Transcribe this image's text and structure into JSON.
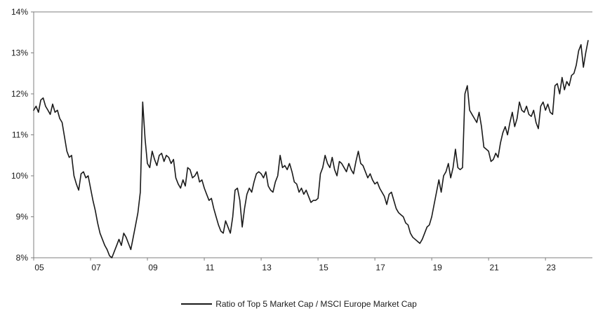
{
  "chart_data": {
    "type": "line",
    "title": "",
    "legend_label": "Ratio of Top 5 Market Cap / MSCI Europe Market Cap",
    "x_start": "2005-01",
    "frequency": "monthly",
    "xlabel": "",
    "ylabel": "",
    "ylim": [
      8,
      14
    ],
    "ytick_labels": [
      "8%",
      "9%",
      "10%",
      "11%",
      "12%",
      "13%",
      "14%"
    ],
    "xtick_years": [
      2005,
      2007,
      2009,
      2011,
      2013,
      2015,
      2017,
      2019,
      2021,
      2023
    ],
    "xtick_labels": [
      "05",
      "07",
      "09",
      "11",
      "13",
      "15",
      "17",
      "19",
      "21",
      "23"
    ],
    "grid": false,
    "legend_position": "bottom-center",
    "line_color": "#1a1a1a",
    "axis_color": "#7f7f7f",
    "values": [
      11.6,
      11.7,
      11.55,
      11.85,
      11.9,
      11.7,
      11.6,
      11.5,
      11.75,
      11.55,
      11.6,
      11.4,
      11.3,
      10.95,
      10.6,
      10.45,
      10.5,
      10.0,
      9.8,
      9.65,
      10.05,
      10.1,
      9.95,
      10.0,
      9.7,
      9.4,
      9.15,
      8.85,
      8.6,
      8.45,
      8.3,
      8.2,
      8.05,
      8.0,
      8.15,
      8.3,
      8.45,
      8.3,
      8.6,
      8.5,
      8.35,
      8.2,
      8.5,
      8.8,
      9.1,
      9.6,
      11.8,
      10.9,
      10.3,
      10.2,
      10.6,
      10.4,
      10.25,
      10.5,
      10.55,
      10.35,
      10.5,
      10.45,
      10.3,
      10.4,
      9.95,
      9.8,
      9.7,
      9.9,
      9.75,
      10.2,
      10.15,
      9.95,
      10.0,
      10.1,
      9.85,
      9.9,
      9.7,
      9.55,
      9.4,
      9.45,
      9.2,
      9.0,
      8.8,
      8.65,
      8.6,
      8.9,
      8.75,
      8.6,
      9.0,
      9.65,
      9.7,
      9.4,
      8.75,
      9.2,
      9.55,
      9.7,
      9.6,
      9.85,
      10.05,
      10.1,
      10.05,
      9.95,
      10.1,
      9.75,
      9.65,
      9.6,
      9.85,
      10.0,
      10.5,
      10.2,
      10.25,
      10.15,
      10.3,
      10.1,
      9.85,
      9.8,
      9.6,
      9.7,
      9.55,
      9.65,
      9.5,
      9.35,
      9.4,
      9.4,
      9.45,
      10.05,
      10.2,
      10.5,
      10.3,
      10.2,
      10.45,
      10.15,
      10.0,
      10.35,
      10.3,
      10.2,
      10.1,
      10.3,
      10.15,
      10.05,
      10.35,
      10.6,
      10.3,
      10.25,
      10.1,
      9.95,
      10.05,
      9.9,
      9.8,
      9.85,
      9.7,
      9.6,
      9.5,
      9.3,
      9.55,
      9.6,
      9.4,
      9.2,
      9.1,
      9.05,
      9.0,
      8.85,
      8.8,
      8.6,
      8.5,
      8.45,
      8.4,
      8.35,
      8.45,
      8.6,
      8.75,
      8.8,
      9.0,
      9.3,
      9.6,
      9.9,
      9.6,
      10.0,
      10.1,
      10.3,
      9.95,
      10.2,
      10.65,
      10.2,
      10.15,
      10.2,
      12.0,
      12.2,
      11.6,
      11.5,
      11.4,
      11.3,
      11.55,
      11.2,
      10.7,
      10.65,
      10.6,
      10.35,
      10.4,
      10.55,
      10.45,
      10.8,
      11.05,
      11.2,
      11.0,
      11.3,
      11.55,
      11.2,
      11.4,
      11.8,
      11.6,
      11.55,
      11.7,
      11.5,
      11.45,
      11.6,
      11.3,
      11.15,
      11.7,
      11.8,
      11.6,
      11.75,
      11.55,
      11.5,
      12.2,
      12.25,
      12.0,
      12.4,
      12.1,
      12.3,
      12.2,
      12.45,
      12.5,
      12.7,
      13.05,
      13.2,
      12.65,
      13.0,
      13.3
    ]
  }
}
